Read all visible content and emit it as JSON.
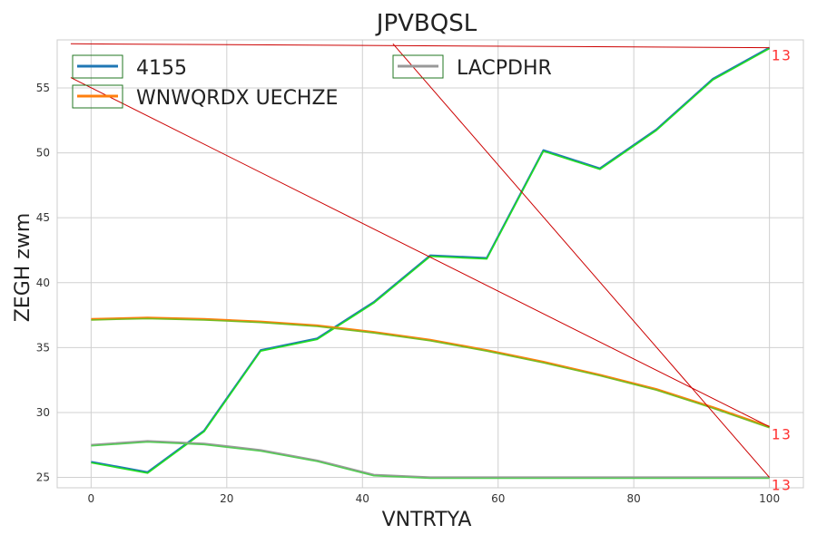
{
  "chart_data": {
    "type": "line",
    "title": "JPVBQSL",
    "xlabel": "VNTRTYA",
    "ylabel": "ZEGH zwm",
    "xlim": [
      -5,
      105
    ],
    "ylim": [
      24.2,
      58.7
    ],
    "x_ticks": [
      0,
      20,
      40,
      60,
      80,
      100
    ],
    "y_ticks": [
      25,
      30,
      35,
      40,
      45,
      50,
      55
    ],
    "grid": true,
    "legend_position": "top",
    "series": [
      {
        "name": "4155",
        "color": "#1f77b4",
        "overlay_color": "#22dd22",
        "x": [
          0,
          8.33,
          16.67,
          25,
          33.33,
          41.67,
          50,
          58.33,
          66.67,
          75,
          83.33,
          91.67,
          100
        ],
        "values": [
          26.2,
          25.4,
          28.6,
          34.8,
          35.7,
          38.5,
          42.1,
          41.9,
          50.2,
          48.8,
          51.8,
          55.7,
          58.1
        ]
      },
      {
        "name": "WNWQRDX UECHZE",
        "color": "#ff7f0e",
        "overlay_color": "#77bb22",
        "x": [
          0,
          8.33,
          16.67,
          25,
          33.33,
          41.67,
          50,
          58.33,
          66.67,
          75,
          83.33,
          91.67,
          100
        ],
        "values": [
          37.2,
          37.3,
          37.2,
          37.0,
          36.7,
          36.2,
          35.6,
          34.8,
          33.9,
          32.9,
          31.8,
          30.4,
          28.9
        ]
      },
      {
        "name": "LACPDHR",
        "color": "#999999",
        "overlay_color": "#55cc55",
        "x": [
          0,
          8.33,
          16.67,
          25,
          33.33,
          41.67,
          50,
          58.33,
          66.67,
          75,
          83.33,
          91.67,
          100
        ],
        "values": [
          27.5,
          27.8,
          27.6,
          27.1,
          26.3,
          25.2,
          25.0,
          25.0,
          25.0,
          25.0,
          25.0,
          25.0,
          25.0
        ]
      }
    ],
    "annotations": [
      {
        "text": "13",
        "x": 100,
        "y": 58.1,
        "color": "#ff3333"
      },
      {
        "text": "13",
        "x": 100,
        "y": 28.9,
        "color": "#ff3333"
      },
      {
        "text": "13",
        "x": 100,
        "y": 25.0,
        "color": "#ff3333"
      }
    ],
    "guide_lines": [
      {
        "from": [
          -3,
          58.4
        ],
        "to": [
          100,
          58.1
        ],
        "color": "#cc0000"
      },
      {
        "from": [
          -3,
          55.8
        ],
        "to": [
          100,
          28.9
        ],
        "color": "#cc0000"
      },
      {
        "from": [
          44.5,
          58.4
        ],
        "to": [
          100,
          25.0
        ],
        "color": "#cc0000"
      }
    ],
    "legend_box_color": "#227722"
  }
}
